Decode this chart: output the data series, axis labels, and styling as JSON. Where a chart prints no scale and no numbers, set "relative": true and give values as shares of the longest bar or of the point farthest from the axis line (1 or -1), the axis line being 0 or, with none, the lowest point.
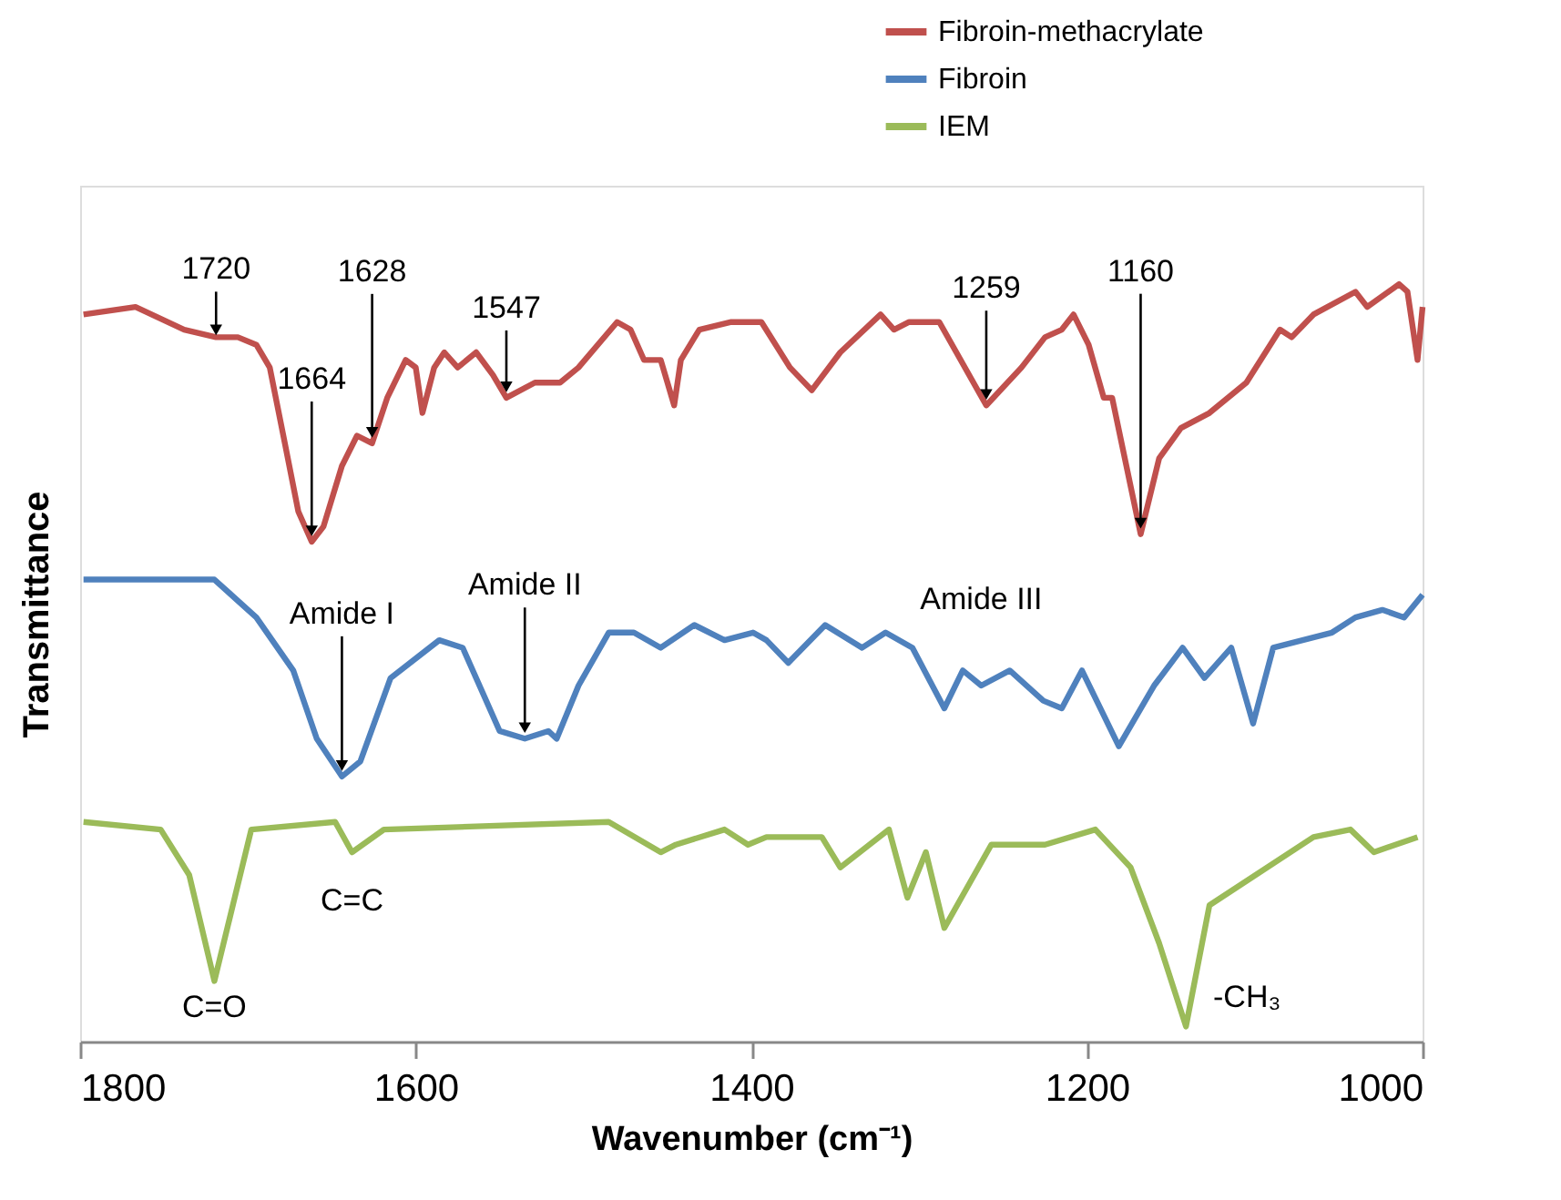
{
  "chart_data": {
    "type": "line",
    "relative": true,
    "xlabel": "Wavenumber (cm⁻¹)",
    "ylabel": "Transmittance",
    "xlim": [
      1800,
      1000
    ],
    "xticks": [
      1800,
      1600,
      1400,
      1200,
      1000
    ],
    "legend": "top right",
    "grid": false,
    "marker": "none",
    "line_style": "solid",
    "series": [
      {
        "name": "Fibroin-methacrylate",
        "color": "#c0504d",
        "x": [
          1798,
          1767,
          1738,
          1719,
          1706,
          1695,
          1687,
          1678,
          1670,
          1662,
          1655,
          1644,
          1635,
          1626,
          1617,
          1606,
          1600,
          1596,
          1589,
          1583,
          1575,
          1564,
          1554,
          1546,
          1529,
          1514,
          1503,
          1480,
          1472,
          1464,
          1454,
          1446,
          1442,
          1431,
          1412,
          1394,
          1377,
          1364,
          1347,
          1323,
          1315,
          1306,
          1288,
          1260,
          1239,
          1225,
          1215,
          1208,
          1199,
          1190,
          1185,
          1168,
          1157,
          1144,
          1127,
          1105,
          1085,
          1078,
          1065,
          1040,
          1033,
          1014,
          1009,
          1003,
          1000
        ],
        "values": [
          0.96,
          0.97,
          0.94,
          0.93,
          0.93,
          0.92,
          0.89,
          0.79,
          0.7,
          0.66,
          0.68,
          0.76,
          0.8,
          0.79,
          0.85,
          0.9,
          0.89,
          0.83,
          0.89,
          0.91,
          0.89,
          0.91,
          0.88,
          0.85,
          0.87,
          0.87,
          0.89,
          0.95,
          0.94,
          0.9,
          0.9,
          0.84,
          0.9,
          0.94,
          0.95,
          0.95,
          0.89,
          0.86,
          0.91,
          0.96,
          0.94,
          0.95,
          0.95,
          0.84,
          0.89,
          0.93,
          0.94,
          0.96,
          0.92,
          0.85,
          0.85,
          0.67,
          0.77,
          0.81,
          0.83,
          0.87,
          0.94,
          0.93,
          0.96,
          0.99,
          0.97,
          1.0,
          0.99,
          0.9,
          0.97
        ]
      },
      {
        "name": "Fibroin",
        "color": "#4f81bd",
        "x": [
          1798,
          1720,
          1695,
          1673,
          1659,
          1644,
          1633,
          1615,
          1586,
          1572,
          1550,
          1535,
          1521,
          1516,
          1503,
          1485,
          1470,
          1454,
          1434,
          1416,
          1399,
          1391,
          1378,
          1356,
          1334,
          1320,
          1304,
          1285,
          1274,
          1263,
          1246,
          1226,
          1215,
          1203,
          1181,
          1160,
          1143,
          1130,
          1114,
          1101,
          1089,
          1054,
          1040,
          1024,
          1011,
          1000
        ],
        "values": [
          0.61,
          0.61,
          0.56,
          0.49,
          0.4,
          0.35,
          0.37,
          0.48,
          0.53,
          0.52,
          0.41,
          0.4,
          0.41,
          0.4,
          0.47,
          0.54,
          0.54,
          0.52,
          0.55,
          0.53,
          0.54,
          0.53,
          0.5,
          0.55,
          0.52,
          0.54,
          0.52,
          0.44,
          0.49,
          0.47,
          0.49,
          0.45,
          0.44,
          0.49,
          0.39,
          0.47,
          0.52,
          0.48,
          0.52,
          0.42,
          0.52,
          0.54,
          0.56,
          0.57,
          0.56,
          0.59
        ]
      },
      {
        "name": "IEM",
        "color": "#9bbb59",
        "x": [
          1798,
          1752,
          1735,
          1720,
          1709,
          1698,
          1648,
          1638,
          1619,
          1485,
          1454,
          1445,
          1416,
          1402,
          1391,
          1377,
          1358,
          1347,
          1318,
          1307,
          1296,
          1285,
          1257,
          1225,
          1195,
          1174,
          1157,
          1141,
          1127,
          1065,
          1043,
          1029,
          1003
        ],
        "values": [
          0.29,
          0.28,
          0.22,
          0.08,
          0.18,
          0.28,
          0.29,
          0.25,
          0.28,
          0.29,
          0.25,
          0.26,
          0.28,
          0.26,
          0.27,
          0.27,
          0.27,
          0.23,
          0.28,
          0.19,
          0.25,
          0.15,
          0.26,
          0.26,
          0.28,
          0.23,
          0.13,
          0.02,
          0.18,
          0.27,
          0.28,
          0.25,
          0.27
        ]
      }
    ],
    "annotations": [
      {
        "text": "1720",
        "x": 1719,
        "y": 0.93
      },
      {
        "text": "1664",
        "x": 1662,
        "y": 0.66
      },
      {
        "text": "1628",
        "x": 1626,
        "y": 0.79
      },
      {
        "text": "1547",
        "x": 1546,
        "y": 0.85
      },
      {
        "text": "1259",
        "x": 1260,
        "y": 0.84
      },
      {
        "text": "1160",
        "x": 1168,
        "y": 0.67
      },
      {
        "text": "Amide I",
        "x": 1644,
        "y": 0.35
      },
      {
        "text": "Amide II",
        "x": 1535,
        "y": 0.4
      },
      {
        "text": "Amide III",
        "x": 1263,
        "y": 0.47
      },
      {
        "text": "C=C",
        "x": 1638,
        "y": 0.25
      },
      {
        "text": "C=O",
        "x": 1720,
        "y": 0.08
      },
      "-CH₃"
    ]
  }
}
